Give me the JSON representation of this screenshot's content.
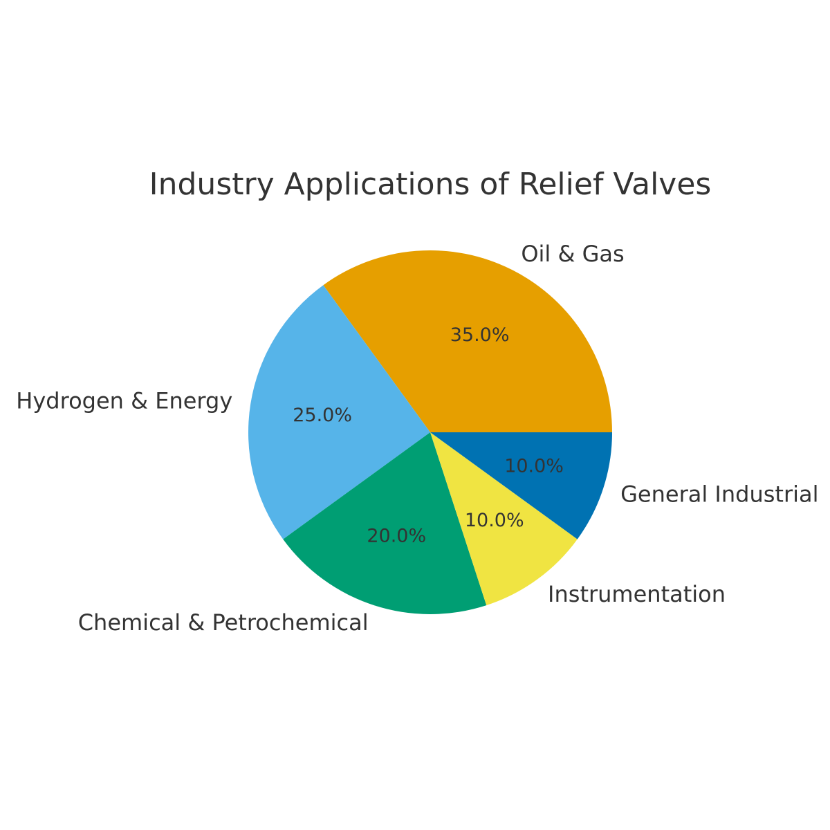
{
  "chart_data": {
    "type": "pie",
    "title": "Industry Applications of Relief Valves",
    "start_angle_deg": 0,
    "direction": "counterclockwise",
    "slices": [
      {
        "label": "Oil & Gas",
        "value": 35.0,
        "pct_label": "35.0%",
        "color": "#E69F00"
      },
      {
        "label": "Hydrogen & Energy",
        "value": 25.0,
        "pct_label": "25.0%",
        "color": "#56B4E9"
      },
      {
        "label": "Chemical & Petrochemical",
        "value": 20.0,
        "pct_label": "20.0%",
        "color": "#009E73"
      },
      {
        "label": "Instrumentation",
        "value": 10.0,
        "pct_label": "10.0%",
        "color": "#F0E442"
      },
      {
        "label": "General Industrial",
        "value": 10.0,
        "pct_label": "10.0%",
        "color": "#0072B2"
      }
    ]
  }
}
